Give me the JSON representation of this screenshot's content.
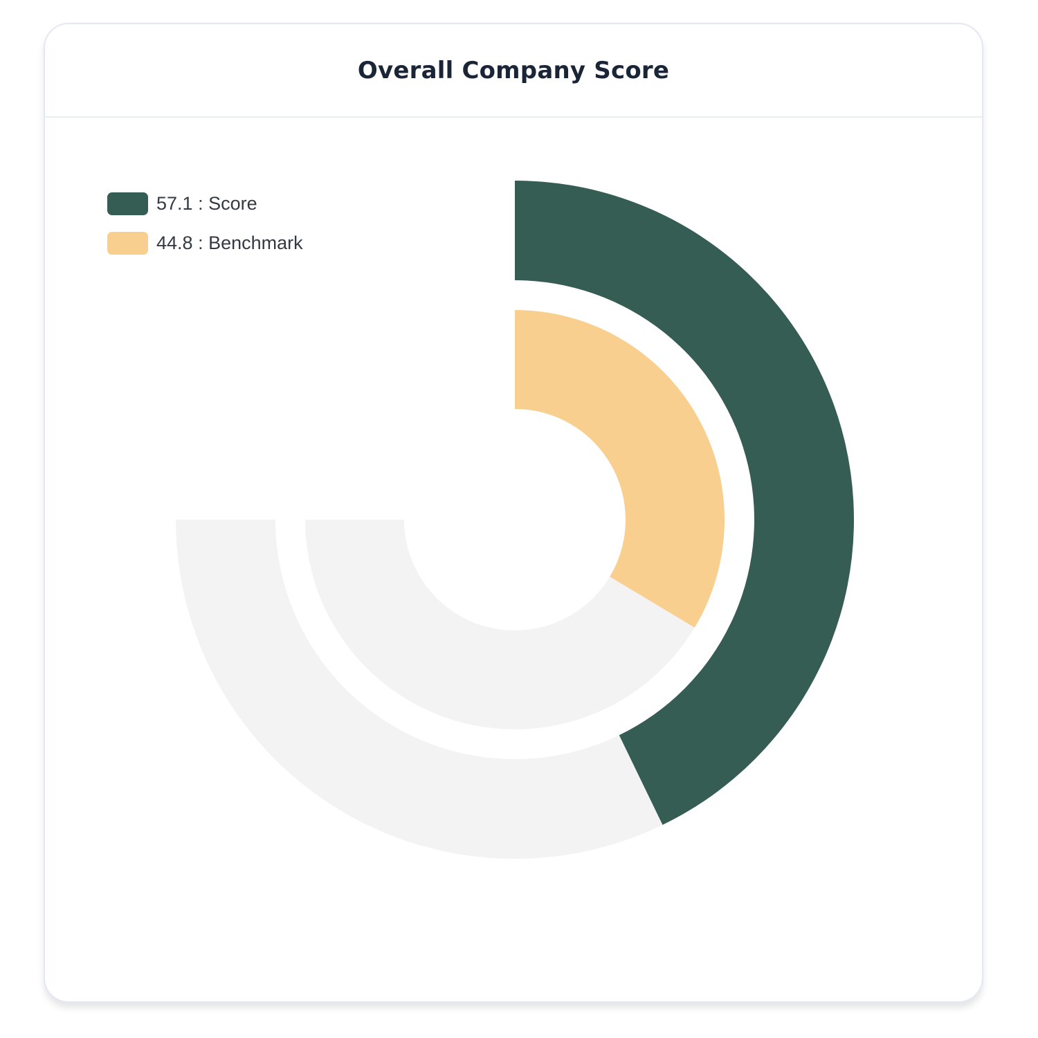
{
  "card": {
    "title": "Overall Company Score"
  },
  "legend": {
    "items": [
      {
        "value": "57.1",
        "separator": " : ",
        "label": "Score",
        "color": "#365d54"
      },
      {
        "value": "44.8",
        "separator": " : ",
        "label": "Benchmark",
        "color": "#f9cf8f"
      }
    ]
  },
  "chart_data": {
    "type": "radial-bar",
    "title": "Overall Company Score",
    "max": 100,
    "sweep_degrees": 270,
    "track_color": "#f3f3f3",
    "series": [
      {
        "name": "Score",
        "value": 57.1,
        "color": "#365d54",
        "ring": "outer"
      },
      {
        "name": "Benchmark",
        "value": 44.8,
        "color": "#f9cf8f",
        "ring": "inner"
      }
    ],
    "legend_position": "top-left",
    "grid": false
  }
}
